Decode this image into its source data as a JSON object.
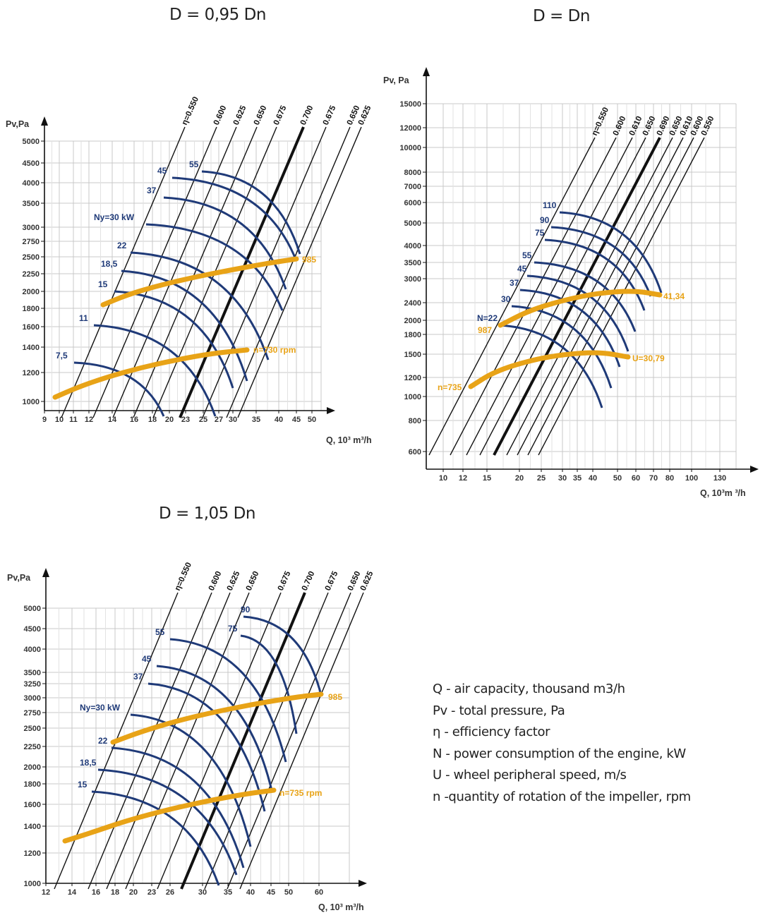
{
  "colors": {
    "power_curve": "#1f3a78",
    "rpm_curve": "#e8a317",
    "efficiency_line": "#111111",
    "grid": "#c8c8c8"
  },
  "legend": {
    "q": "Q - air capacity, thousand m3/h",
    "pv": "Pv - total pressure, Pa",
    "eta": "η - efficiency factor",
    "n": "N - power consumption of the engine, kW",
    "u": "U - wheel peripheral speed, m/s",
    "rpm": "n -quantity of rotation of the impeller, rpm"
  },
  "chart_data": [
    {
      "type": "line",
      "title": "D = 0,95 Dn",
      "xlabel": "Q, 10³ m³/h",
      "ylabel": "Pv,Pa",
      "xscale": "log",
      "yscale": "log",
      "grid": true,
      "x_ticks": [
        "9",
        "10",
        "11",
        "12",
        "14",
        "16",
        "18",
        "20",
        "23",
        "25",
        "27",
        "30",
        "35",
        "40",
        "45",
        "50"
      ],
      "y_ticks": [
        "1000",
        "1200",
        "1400",
        "1600",
        "1800",
        "2000",
        "2250",
        "2500",
        "2750",
        "3000",
        "3500",
        "4000",
        "4500",
        "5000"
      ],
      "efficiency_labels": [
        "η=0.550",
        "0.600",
        "0.625",
        "0.650",
        "0.675",
        "0.700",
        "0.675",
        "0.650",
        "0.625"
      ],
      "power_labels": [
        "7,5",
        "11",
        "15",
        "18,5",
        "22",
        "Ny=30 kW",
        "37",
        "45",
        "55"
      ],
      "rpm_curves": [
        {
          "name": "985",
          "x": [
            13,
            16,
            20,
            25,
            30,
            37,
            45
          ],
          "y": [
            1840,
            1990,
            2120,
            2240,
            2330,
            2420,
            2480
          ]
        },
        {
          "name": "n=730 rpm",
          "x": [
            9.5,
            12,
            15,
            19,
            24,
            29,
            34
          ],
          "y": [
            1040,
            1120,
            1190,
            1250,
            1300,
            1340,
            1370
          ]
        }
      ],
      "power_points": [
        {
          "name": "7,5",
          "y": 1310
        },
        {
          "name": "11",
          "y": 1640
        },
        {
          "name": "15",
          "y": 1920
        },
        {
          "name": "18,5",
          "y": 2270
        },
        {
          "name": "22",
          "y": 2560
        },
        {
          "name": "Ny=30 kW",
          "y": 3100
        },
        {
          "name": "37",
          "y": 3700
        },
        {
          "name": "45",
          "y": 4350
        },
        {
          "name": "55",
          "y": 4600
        }
      ]
    },
    {
      "type": "line",
      "title": "D = Dn",
      "xlabel": "Q, 10³m ³/h",
      "ylabel": "Pv, Pa",
      "xscale": "log",
      "yscale": "log",
      "grid": true,
      "x_ticks": [
        "10",
        "12",
        "15",
        "20",
        "25",
        "30",
        "35",
        "40",
        "50",
        "60",
        "70",
        "80",
        "100",
        "130"
      ],
      "y_ticks": [
        "600",
        "800",
        "1000",
        "1200",
        "1500",
        "1800",
        "2000",
        "2400",
        "3000",
        "3500",
        "4000",
        "5000",
        "6000",
        "7000",
        "8000",
        "10000",
        "12000",
        "15000"
      ],
      "efficiency_labels": [
        "η=0.550",
        "0.600",
        "0.610",
        "0.650",
        "0.690",
        "0.650",
        "0.610",
        "0.600",
        "0.550"
      ],
      "power_labels": [
        "N=22",
        "30",
        "37",
        "45",
        "55",
        "75",
        "90",
        "110"
      ],
      "rpm_curves": [
        {
          "name": "987",
          "x": [
            17,
            20,
            25,
            32,
            40,
            50,
            60,
            73
          ],
          "y": [
            1950,
            2200,
            2420,
            2580,
            2650,
            2680,
            2660,
            2600
          ]
        },
        {
          "name": "n=735",
          "x": [
            12,
            15,
            20,
            25,
            32,
            40,
            50,
            58
          ],
          "y": [
            1060,
            1180,
            1300,
            1390,
            1460,
            1500,
            1500,
            1480
          ]
        }
      ],
      "annotations": [
        "41,34",
        "U=30,79"
      ],
      "power_points": [
        {
          "name": "N=22",
          "y": 1950
        },
        {
          "name": "30",
          "y": 2250
        },
        {
          "name": "37",
          "y": 2650
        },
        {
          "name": "45",
          "y": 3050
        },
        {
          "name": "55",
          "y": 3450
        },
        {
          "name": "75",
          "y": 4500
        },
        {
          "name": "90",
          "y": 5100
        },
        {
          "name": "110",
          "y": 5700
        }
      ]
    },
    {
      "type": "line",
      "title": "D = 1,05 Dn",
      "xlabel": "Q, 10³ m³/h",
      "ylabel": "Pv,Pa",
      "xscale": "log",
      "yscale": "log",
      "grid": true,
      "x_ticks": [
        "12",
        "14",
        "16",
        "18",
        "20",
        "23",
        "26",
        "30",
        "35",
        "40",
        "45",
        "50",
        "60"
      ],
      "y_ticks": [
        "1000",
        "1200",
        "1400",
        "1600",
        "1800",
        "2000",
        "2250",
        "2500",
        "2750",
        "3000",
        "3250",
        "3500",
        "4000",
        "4500",
        "5000"
      ],
      "efficiency_labels": [
        "η=0.550",
        "0.600",
        "0.625",
        "0.650",
        "0.675",
        "0.700",
        "0.675",
        "0.650",
        "0.625"
      ],
      "power_labels": [
        "15",
        "18,5",
        "22",
        "Ny=30 kW",
        "37",
        "45",
        "55",
        "75",
        "90"
      ],
      "rpm_curves": [
        {
          "name": "985",
          "x": [
            18,
            21,
            25,
            30,
            37,
            45,
            53,
            60
          ],
          "y": [
            2300,
            2450,
            2600,
            2730,
            2860,
            2960,
            3040,
            3080
          ]
        },
        {
          "name": "n=735 rpm",
          "x": [
            13.5,
            16,
            19,
            23,
            28,
            34,
            40,
            46
          ],
          "y": [
            1290,
            1380,
            1460,
            1530,
            1590,
            1650,
            1700,
            1730
          ]
        }
      ],
      "power_points": [
        {
          "name": "15",
          "y": 1750
        },
        {
          "name": "18,5",
          "y": 2000
        },
        {
          "name": "22",
          "y": 2300
        },
        {
          "name": "Ny=30 kW",
          "y": 2780
        },
        {
          "name": "37",
          "y": 3360
        },
        {
          "name": "45",
          "y": 3720
        },
        {
          "name": "55",
          "y": 4400
        },
        {
          "name": "75",
          "y": 4800
        },
        {
          "name": "90",
          "y": 4900
        }
      ]
    }
  ]
}
